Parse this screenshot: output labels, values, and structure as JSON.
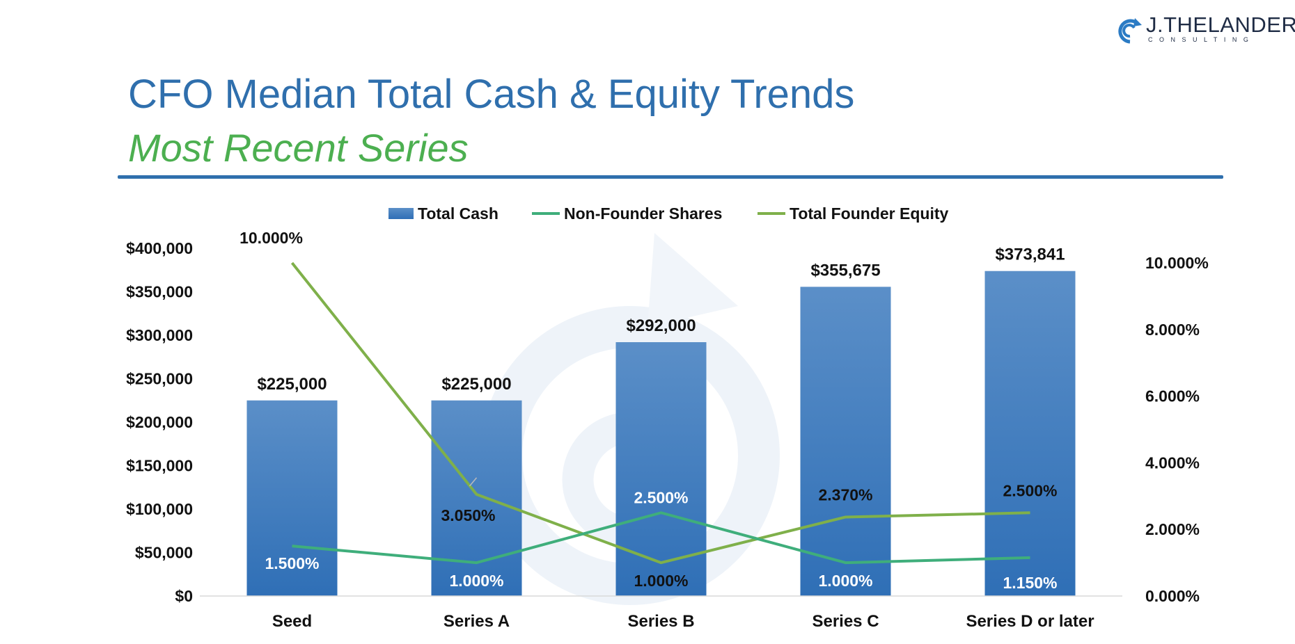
{
  "brand": {
    "name": "J.THELANDER",
    "sub": "CONSULTING",
    "logo_icon": "spiral-arrow-icon",
    "color": "#2b7bc4"
  },
  "header": {
    "title": "CFO Median Total Cash & Equity Trends",
    "subtitle": "Most Recent Series"
  },
  "colors": {
    "title": "#2f6fad",
    "subtitle": "#4caf50",
    "bar": "#3b7cc0",
    "non_founder": "#3fae7b",
    "founder": "#7fb04a"
  },
  "chart_data": {
    "type": "bar",
    "categories": [
      "Seed",
      "Series A",
      "Series B",
      "Series C",
      "Series D or later"
    ],
    "legend": [
      "Total Cash",
      "Non-Founder Shares",
      "Total Founder Equity"
    ],
    "legend_position": "top",
    "grid": false,
    "series": [
      {
        "name": "Total Cash",
        "type": "bar",
        "axis": "left",
        "values": [
          225000,
          225000,
          292000,
          355675,
          373841
        ],
        "labels": [
          "$225,000",
          "$225,000",
          "$292,000",
          "$355,675",
          "$373,841"
        ]
      },
      {
        "name": "Non-Founder Shares",
        "type": "line",
        "axis": "right",
        "values": [
          1.5,
          1.0,
          2.5,
          1.0,
          1.15
        ],
        "labels": [
          "1.500%",
          "1.000%",
          "2.500%",
          "1.000%",
          "1.150%"
        ]
      },
      {
        "name": "Total Founder Equity",
        "type": "line",
        "axis": "right",
        "values": [
          10.0,
          3.05,
          1.0,
          2.37,
          2.5
        ],
        "labels": [
          "10.000%",
          "3.050%",
          "1.000%",
          "2.370%",
          "2.500%"
        ]
      }
    ],
    "y_left": {
      "min": 0,
      "max": 400000,
      "ticks": [
        "$0",
        "$50,000",
        "$100,000",
        "$150,000",
        "$200,000",
        "$250,000",
        "$300,000",
        "$350,000",
        "$400,000"
      ]
    },
    "y_right": {
      "min": 0,
      "max": 10.5,
      "ticks": [
        "0.000%",
        "2.000%",
        "4.000%",
        "6.000%",
        "8.000%",
        "10.000%"
      ]
    }
  }
}
